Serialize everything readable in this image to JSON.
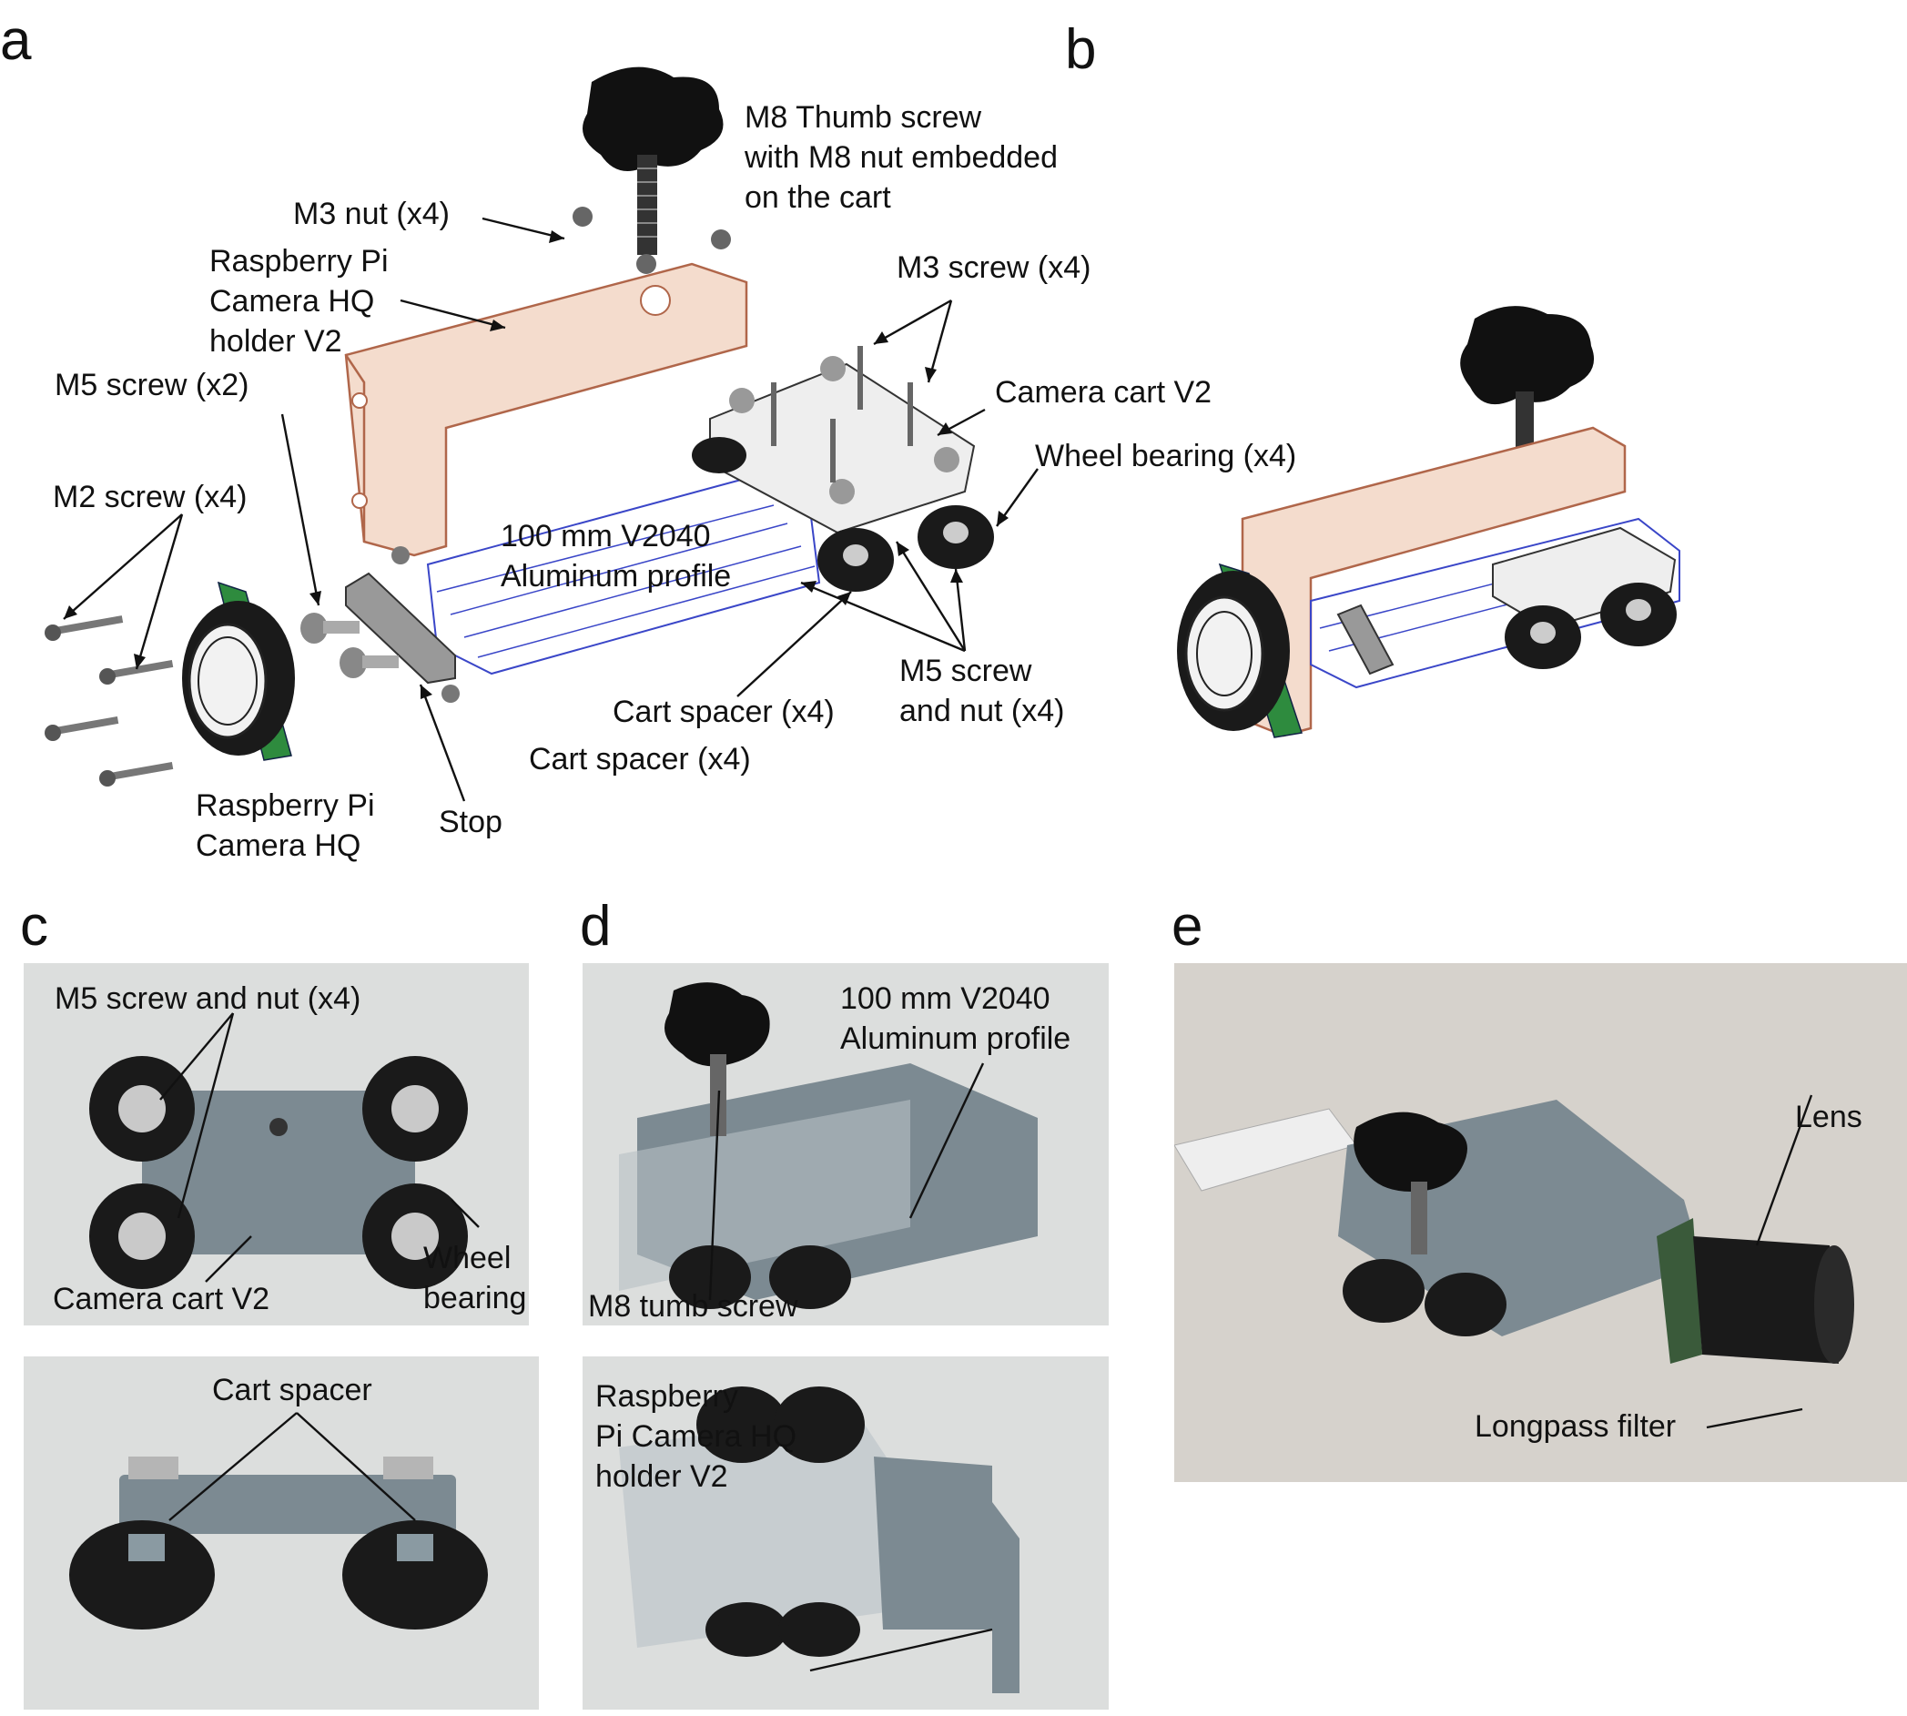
{
  "panels": {
    "a": {
      "letter": "a",
      "labels": {
        "thumb_screw": "M8 Thumb screw\nwith M8 nut embedded\non the cart",
        "m3_nut": "M3 nut (x4)",
        "holder": "Raspberry Pi\nCamera HQ\nholder V2",
        "m3_screw": "M3 screw (x4)",
        "camera_cart": "Camera cart V2",
        "m5_screw_x2": "M5 screw (x2)",
        "wheel_bearing": "Wheel bearing (x4)",
        "m2_screw": "M2 screw (x4)",
        "profile": "100 mm V2040\nAluminum profile",
        "m5_screw_nut": "M5 screw\nand nut (x4)",
        "cart_spacer_1": "Cart spacer (x4)",
        "cart_spacer_2": "Cart spacer (x4)",
        "camera_hq": "Raspberry Pi\nCamera HQ",
        "stop": "Stop"
      }
    },
    "b": {
      "letter": "b"
    },
    "c": {
      "letter": "c",
      "labels": {
        "m5_screw_nut": "M5 screw and nut (x4)",
        "camera_cart": "Camera cart V2",
        "wheel_bearing": "Wheel\nbearing",
        "cart_spacer": "Cart spacer"
      }
    },
    "d": {
      "letter": "d",
      "labels": {
        "profile": "100 mm V2040\nAluminum profile",
        "thumb_screw": "M8 tumb screw",
        "holder": "Raspberry\nPi Camera HQ\nholder V2"
      }
    },
    "e": {
      "letter": "e",
      "labels": {
        "lens": "Lens",
        "filter": "Longpass filter"
      }
    }
  },
  "colors": {
    "photo_bg": "#dcdedd",
    "photo_bg_e": "#d6d2cc",
    "printed_grey": "#7c8a92",
    "holder_tint": "#f4dccd",
    "holder_edge": "#b0664a",
    "profile_line": "#3a46c8",
    "wheel_black": "#1a1a1a",
    "pcb_green": "#2e8b3e"
  }
}
